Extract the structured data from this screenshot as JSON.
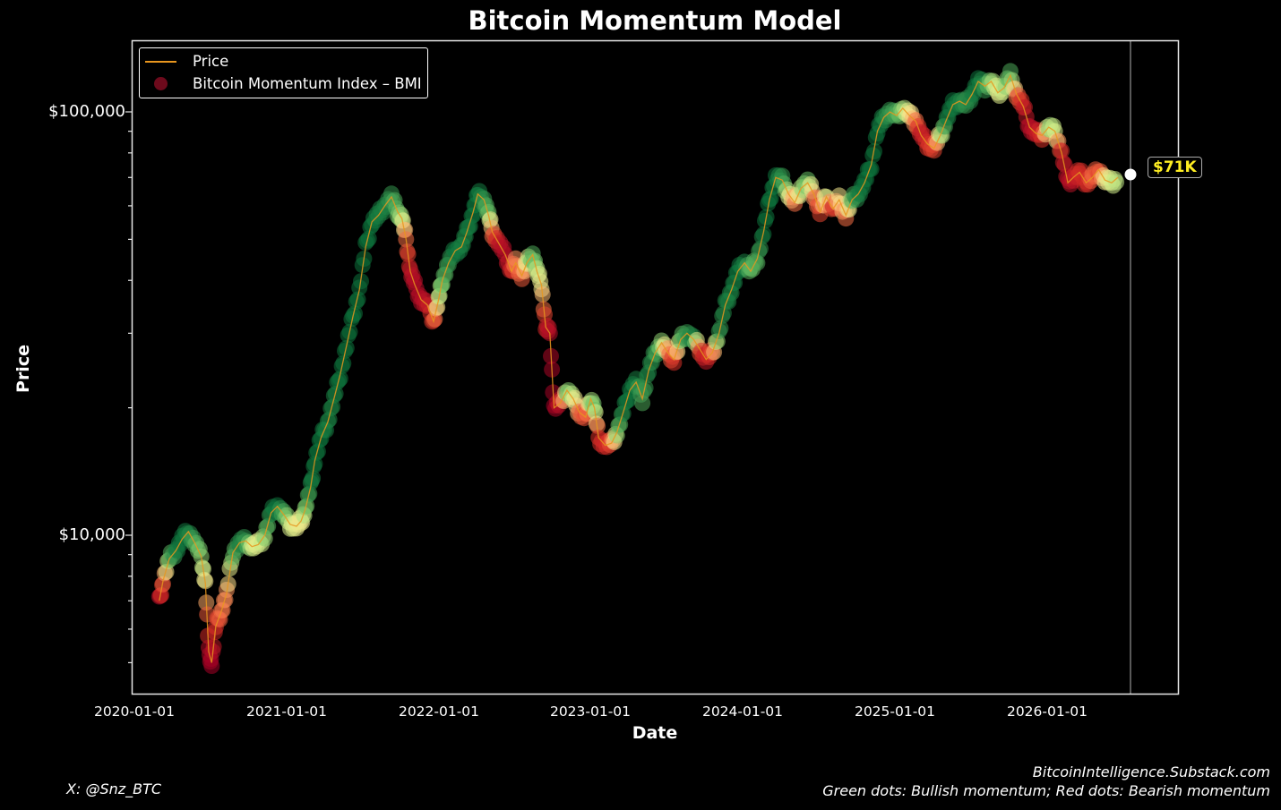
{
  "title": "Bitcoin Momentum Model",
  "axes": {
    "xlabel": "Date",
    "ylabel": "Price",
    "yticks": [
      {
        "label": "$100,000",
        "value": 100000
      },
      {
        "label": "$10,000",
        "value": 10000
      }
    ],
    "xticks": [
      "2020-01-01",
      "2021-01-01",
      "2022-01-01",
      "2023-01-01",
      "2024-01-01",
      "2025-01-01",
      "2026-01-01"
    ]
  },
  "legend": {
    "price_label": "Price",
    "bmi_label": "Bitcoin Momentum Index – BMI"
  },
  "current_price_badge": "$71K",
  "footer": {
    "handle": "X: @Snz_BTC",
    "site": "BitcoinIntelligence.Substack.com",
    "note": "Green dots: Bullish momentum; Red dots: Bearish momentum"
  },
  "colors": {
    "background": "#000000",
    "price_line": "#e8961e",
    "bullish": "#0a7a3e",
    "bearish": "#c8102e",
    "badge_text": "#ffee22"
  },
  "chart_data": {
    "type": "scatter",
    "title": "Bitcoin Momentum Model",
    "xlabel": "Date",
    "ylabel": "Price",
    "yscale": "log",
    "ylim": [
      4400,
      145000
    ],
    "xlim": [
      "2019-12-31",
      "2026-11-25"
    ],
    "legend_position": "upper left",
    "grid": false,
    "current_marker": {
      "date": "2026-07-20",
      "price": 71000,
      "label": "$71K"
    },
    "series": [
      {
        "name": "Price",
        "type": "line",
        "color": "#e8961e"
      },
      {
        "name": "Bitcoin Momentum Index – BMI",
        "type": "scatter",
        "colorscale": "RdYlGn (-1 bearish … +1 bullish)"
      }
    ],
    "points": [
      [
        "2020-03-01",
        7000,
        -0.9
      ],
      [
        "2020-03-10",
        7800,
        -0.4
      ],
      [
        "2020-03-25",
        8800,
        0.6
      ],
      [
        "2020-04-10",
        9200,
        0.9
      ],
      [
        "2020-04-25",
        9800,
        0.95
      ],
      [
        "2020-05-10",
        10200,
        0.9
      ],
      [
        "2020-05-25",
        9600,
        0.7
      ],
      [
        "2020-06-10",
        8900,
        0.5
      ],
      [
        "2020-06-20",
        7700,
        0.1
      ],
      [
        "2020-06-28",
        5300,
        -0.9
      ],
      [
        "2020-07-05",
        5000,
        -1.0
      ],
      [
        "2020-07-15",
        6100,
        -0.6
      ],
      [
        "2020-07-28",
        6600,
        -0.3
      ],
      [
        "2020-08-10",
        7300,
        -0.2
      ],
      [
        "2020-08-25",
        9100,
        0.6
      ],
      [
        "2020-09-10",
        9600,
        0.9
      ],
      [
        "2020-09-25",
        9700,
        0.8
      ],
      [
        "2020-10-10",
        9400,
        0.3
      ],
      [
        "2020-10-25",
        9500,
        0.2
      ],
      [
        "2020-11-10",
        10000,
        0.5
      ],
      [
        "2020-11-25",
        11300,
        0.9
      ],
      [
        "2020-12-10",
        11700,
        0.95
      ],
      [
        "2020-12-25",
        11200,
        0.7
      ],
      [
        "2021-01-10",
        10600,
        0.3
      ],
      [
        "2021-01-25",
        10500,
        0.2
      ],
      [
        "2021-02-05",
        10800,
        0.1
      ],
      [
        "2021-02-15",
        11500,
        0.5
      ],
      [
        "2021-02-28",
        13000,
        0.9
      ],
      [
        "2021-03-10",
        15000,
        0.95
      ],
      [
        "2021-03-25",
        17000,
        0.95
      ],
      [
        "2021-04-10",
        18500,
        0.9
      ],
      [
        "2021-04-25",
        21000,
        0.9
      ],
      [
        "2021-05-10",
        24000,
        0.95
      ],
      [
        "2021-05-25",
        28000,
        0.95
      ],
      [
        "2021-06-10",
        33000,
        0.95
      ],
      [
        "2021-06-25",
        38000,
        0.95
      ],
      [
        "2021-07-10",
        48000,
        0.95
      ],
      [
        "2021-07-25",
        55000,
        0.95
      ],
      [
        "2021-08-10",
        57000,
        0.9
      ],
      [
        "2021-08-25",
        60000,
        0.9
      ],
      [
        "2021-09-10",
        63000,
        0.8
      ],
      [
        "2021-09-25",
        58000,
        0.6
      ],
      [
        "2021-10-05",
        56000,
        0.4
      ],
      [
        "2021-10-15",
        50000,
        -0.3
      ],
      [
        "2021-10-25",
        42000,
        -0.8
      ],
      [
        "2021-11-05",
        39000,
        -0.9
      ],
      [
        "2021-11-20",
        36000,
        -0.9
      ],
      [
        "2021-12-05",
        35000,
        -0.8
      ],
      [
        "2021-12-20",
        32000,
        -0.5
      ],
      [
        "2022-01-01",
        36000,
        0.3
      ],
      [
        "2022-01-10",
        40000,
        0.6
      ],
      [
        "2022-01-25",
        44000,
        0.8
      ],
      [
        "2022-02-10",
        47000,
        0.95
      ],
      [
        "2022-02-25",
        48000,
        0.9
      ],
      [
        "2022-03-10",
        52000,
        0.9
      ],
      [
        "2022-03-25",
        58000,
        0.95
      ],
      [
        "2022-04-05",
        64000,
        0.95
      ],
      [
        "2022-04-20",
        62000,
        0.8
      ],
      [
        "2022-05-01",
        57000,
        0.6
      ],
      [
        "2022-05-10",
        52000,
        -0.3
      ],
      [
        "2022-05-25",
        49000,
        -0.8
      ],
      [
        "2022-06-10",
        46000,
        -0.9
      ],
      [
        "2022-06-25",
        42000,
        -0.7
      ],
      [
        "2022-07-05",
        44000,
        -0.2
      ],
      [
        "2022-07-20",
        41000,
        -0.4
      ],
      [
        "2022-08-01",
        44000,
        0.2
      ],
      [
        "2022-08-15",
        46000,
        0.7
      ],
      [
        "2022-08-25",
        42000,
        0.4
      ],
      [
        "2022-09-05",
        39000,
        0.1
      ],
      [
        "2022-09-15",
        31000,
        -0.7
      ],
      [
        "2022-09-25",
        30000,
        -0.9
      ],
      [
        "2022-10-05",
        20000,
        -1.0
      ],
      [
        "2022-10-20",
        20500,
        -0.8
      ],
      [
        "2022-11-05",
        22000,
        0.6
      ],
      [
        "2022-11-20",
        21000,
        0.3
      ],
      [
        "2022-12-05",
        19500,
        -0.3
      ],
      [
        "2022-12-20",
        19000,
        -0.5
      ],
      [
        "2023-01-01",
        21000,
        0.4
      ],
      [
        "2023-01-10",
        20000,
        0.6
      ],
      [
        "2023-01-20",
        17000,
        -0.6
      ],
      [
        "2023-02-05",
        16300,
        -0.7
      ],
      [
        "2023-02-20",
        16500,
        -0.4
      ],
      [
        "2023-03-05",
        17500,
        0.5
      ],
      [
        "2023-03-20",
        19500,
        0.9
      ],
      [
        "2023-04-05",
        22000,
        0.95
      ],
      [
        "2023-04-20",
        23000,
        0.9
      ],
      [
        "2023-05-05",
        21000,
        0.7
      ],
      [
        "2023-05-20",
        24500,
        0.9
      ],
      [
        "2023-06-05",
        27000,
        0.8
      ],
      [
        "2023-06-20",
        28500,
        0.5
      ],
      [
        "2023-07-05",
        27000,
        -0.2
      ],
      [
        "2023-07-20",
        26000,
        -0.6
      ],
      [
        "2023-08-05",
        29000,
        0.6
      ],
      [
        "2023-08-20",
        30000,
        0.8
      ],
      [
        "2023-09-05",
        29000,
        0.9
      ],
      [
        "2023-09-20",
        27500,
        -0.5
      ],
      [
        "2023-10-05",
        26000,
        -0.8
      ],
      [
        "2023-10-20",
        27000,
        -0.4
      ],
      [
        "2023-11-05",
        30000,
        0.8
      ],
      [
        "2023-11-20",
        35000,
        0.9
      ],
      [
        "2023-12-05",
        38000,
        0.9
      ],
      [
        "2023-12-20",
        42000,
        0.95
      ],
      [
        "2024-01-05",
        44000,
        0.9
      ],
      [
        "2024-01-20",
        42000,
        0.6
      ],
      [
        "2024-02-05",
        45000,
        0.7
      ],
      [
        "2024-02-20",
        52000,
        0.95
      ],
      [
        "2024-03-05",
        62000,
        0.95
      ],
      [
        "2024-03-20",
        70000,
        0.95
      ],
      [
        "2024-04-05",
        69000,
        0.8
      ],
      [
        "2024-04-20",
        64000,
        0.3
      ],
      [
        "2024-05-05",
        61000,
        -0.3
      ],
      [
        "2024-05-20",
        66000,
        0.4
      ],
      [
        "2024-06-05",
        68000,
        0.6
      ],
      [
        "2024-06-20",
        64000,
        -0.2
      ],
      [
        "2024-07-05",
        58000,
        -0.5
      ],
      [
        "2024-07-20",
        63000,
        0.3
      ],
      [
        "2024-08-05",
        59000,
        -0.7
      ],
      [
        "2024-08-20",
        62000,
        0.1
      ],
      [
        "2024-09-05",
        57000,
        -0.3
      ],
      [
        "2024-09-20",
        62000,
        0.7
      ],
      [
        "2024-10-05",
        64000,
        0.9
      ],
      [
        "2024-10-20",
        68000,
        0.95
      ],
      [
        "2024-11-05",
        75000,
        0.95
      ],
      [
        "2024-11-20",
        90000,
        0.95
      ],
      [
        "2024-12-05",
        97000,
        0.9
      ],
      [
        "2024-12-20",
        100000,
        0.8
      ],
      [
        "2025-01-05",
        98000,
        0.7
      ],
      [
        "2025-01-20",
        102000,
        0.5
      ],
      [
        "2025-02-05",
        98000,
        0.1
      ],
      [
        "2025-02-20",
        95000,
        -0.3
      ],
      [
        "2025-03-05",
        88000,
        -0.8
      ],
      [
        "2025-03-20",
        84000,
        -0.6
      ],
      [
        "2025-04-05",
        82000,
        -0.5
      ],
      [
        "2025-04-20",
        88000,
        0.3
      ],
      [
        "2025-05-05",
        96000,
        0.9
      ],
      [
        "2025-05-20",
        104000,
        0.95
      ],
      [
        "2025-06-05",
        106000,
        0.9
      ],
      [
        "2025-06-20",
        104000,
        0.8
      ],
      [
        "2025-07-05",
        110000,
        0.9
      ],
      [
        "2025-07-20",
        118000,
        0.95
      ],
      [
        "2025-08-05",
        115000,
        0.8
      ],
      [
        "2025-08-20",
        118000,
        0.5
      ],
      [
        "2025-09-05",
        111000,
        0.2
      ],
      [
        "2025-09-20",
        114000,
        0.4
      ],
      [
        "2025-10-05",
        122000,
        0.7
      ],
      [
        "2025-10-20",
        110000,
        -0.3
      ],
      [
        "2025-11-05",
        103000,
        -0.7
      ],
      [
        "2025-11-20",
        92000,
        -0.9
      ],
      [
        "2025-12-05",
        89000,
        -0.8
      ],
      [
        "2025-12-20",
        88000,
        -0.6
      ],
      [
        "2026-01-05",
        92000,
        0.5
      ],
      [
        "2026-01-20",
        90000,
        0.3
      ],
      [
        "2026-02-05",
        80000,
        -0.7
      ],
      [
        "2026-02-20",
        68000,
        -0.9
      ],
      [
        "2026-03-05",
        70000,
        -0.8
      ],
      [
        "2026-03-20",
        72000,
        -0.6
      ],
      [
        "2026-04-05",
        68000,
        -0.7
      ],
      [
        "2026-04-20",
        70000,
        -0.3
      ],
      [
        "2026-05-05",
        73000,
        -0.5
      ],
      [
        "2026-05-20",
        69000,
        0.1
      ],
      [
        "2026-06-05",
        68000,
        0.3
      ],
      [
        "2026-06-20",
        70000,
        0.4
      ]
    ]
  }
}
